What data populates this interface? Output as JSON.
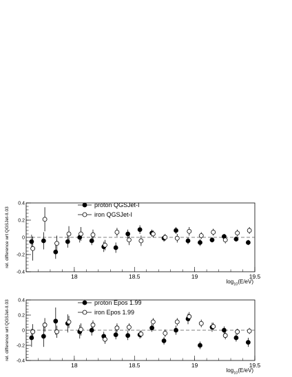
{
  "chart_data": [
    {
      "type": "scatter",
      "ylabel": "rel. difference wrt QGSJet-II.03",
      "xlabel_main": "log",
      "xlabel_sub": "10",
      "xlabel_rest": "(E/eV)",
      "xlim": [
        17.6,
        19.5
      ],
      "ylim": [
        -0.4,
        0.4
      ],
      "xticks": [
        {
          "value": 18,
          "label": "18"
        },
        {
          "value": 18.5,
          "label": "18.5"
        },
        {
          "value": 19,
          "label": "19"
        },
        {
          "value": 19.5,
          "label": "19.5"
        }
      ],
      "yticks": [
        {
          "value": -0.4,
          "label": "-0.4"
        },
        {
          "value": -0.2,
          "label": "-0.2"
        },
        {
          "value": 0,
          "label": "0"
        },
        {
          "value": 0.2,
          "label": "0.2"
        },
        {
          "value": 0.4,
          "label": "0.4"
        }
      ],
      "reference_line": 0,
      "legend_position": "top-center",
      "series": [
        {
          "name": "proton QGSJet-I",
          "marker": "filled-circle",
          "x": [
            17.65,
            17.75,
            17.85,
            17.95,
            18.05,
            18.15,
            18.25,
            18.35,
            18.45,
            18.55,
            18.65,
            18.75,
            18.85,
            18.95,
            19.05,
            19.15,
            19.25,
            19.35,
            19.45
          ],
          "y": [
            -0.05,
            -0.04,
            -0.17,
            -0.05,
            0.0,
            -0.04,
            -0.11,
            -0.12,
            0.04,
            0.09,
            0.05,
            -0.01,
            0.08,
            -0.04,
            -0.06,
            -0.03,
            0.01,
            -0.02,
            -0.06
          ],
          "err": [
            0.08,
            0.1,
            0.08,
            0.07,
            0.06,
            0.05,
            0.06,
            0.06,
            0.05,
            0.05,
            0.04,
            0.04,
            0.04,
            0.04,
            0.04,
            0.03,
            0.03,
            0.03,
            0.03
          ]
        },
        {
          "name": "iron QGSJet-I",
          "marker": "open-circle",
          "x": [
            17.65,
            17.75,
            17.85,
            17.95,
            18.05,
            18.15,
            18.25,
            18.35,
            18.45,
            18.55,
            18.65,
            18.75,
            18.85,
            18.95,
            19.05,
            19.15,
            19.25,
            19.35,
            19.45
          ],
          "y": [
            -0.13,
            0.21,
            -0.07,
            0.04,
            0.04,
            0.03,
            -0.09,
            0.06,
            -0.03,
            -0.04,
            0.04,
            0.0,
            -0.01,
            0.07,
            0.02,
            0.06,
            -0.03,
            0.05,
            0.08
          ],
          "err": [
            0.14,
            0.14,
            0.09,
            0.09,
            0.08,
            0.06,
            0.06,
            0.05,
            0.06,
            0.06,
            0.04,
            0.04,
            0.05,
            0.05,
            0.04,
            0.04,
            0.04,
            0.04,
            0.04
          ]
        }
      ]
    },
    {
      "type": "scatter",
      "ylabel": "rel. difference wrt QGSJet-II.03",
      "xlabel_main": "log",
      "xlabel_sub": "10",
      "xlabel_rest": "(E/eV)",
      "xlim": [
        17.6,
        19.5
      ],
      "ylim": [
        -0.4,
        0.4
      ],
      "xticks": [
        {
          "value": 18,
          "label": "18"
        },
        {
          "value": 18.5,
          "label": "18.5"
        },
        {
          "value": 19,
          "label": "19"
        },
        {
          "value": 19.5,
          "label": "19.5"
        }
      ],
      "yticks": [
        {
          "value": -0.4,
          "label": "-0.4"
        },
        {
          "value": -0.2,
          "label": "-0.2"
        },
        {
          "value": 0,
          "label": "0"
        },
        {
          "value": 0.2,
          "label": "0.2"
        },
        {
          "value": 0.4,
          "label": "0.4"
        }
      ],
      "reference_line": 0,
      "legend_position": "top-center",
      "series": [
        {
          "name": "proton Epos 1.99",
          "marker": "filled-circle",
          "x": [
            17.65,
            17.75,
            17.85,
            17.95,
            18.05,
            18.15,
            18.25,
            18.35,
            18.45,
            18.55,
            18.65,
            18.75,
            18.85,
            18.95,
            19.05,
            19.15,
            19.25,
            19.35,
            19.45
          ],
          "y": [
            -0.1,
            -0.08,
            0.12,
            0.09,
            -0.02,
            0.0,
            -0.08,
            -0.06,
            -0.07,
            -0.06,
            0.03,
            -0.14,
            0.0,
            0.15,
            -0.2,
            0.04,
            0.0,
            -0.1,
            -0.16
          ],
          "err": [
            0.12,
            0.14,
            0.18,
            0.12,
            0.09,
            0.07,
            0.06,
            0.06,
            0.06,
            0.05,
            0.05,
            0.05,
            0.06,
            0.07,
            0.05,
            0.06,
            0.05,
            0.05,
            0.06
          ]
        },
        {
          "name": "iron Epos 1.99",
          "marker": "open-circle",
          "x": [
            17.65,
            17.75,
            17.85,
            17.95,
            18.05,
            18.15,
            18.25,
            18.35,
            18.45,
            18.55,
            18.65,
            18.75,
            18.85,
            18.95,
            19.05,
            19.15,
            19.25,
            19.35,
            19.45
          ],
          "y": [
            -0.02,
            0.07,
            -0.02,
            0.11,
            0.01,
            0.07,
            -0.12,
            0.03,
            0.04,
            -0.05,
            0.11,
            -0.04,
            0.11,
            0.18,
            0.09,
            0.05,
            -0.07,
            -0.02,
            -0.01
          ],
          "err": [
            0.1,
            0.09,
            0.08,
            0.08,
            0.08,
            0.06,
            0.06,
            0.06,
            0.05,
            0.05,
            0.05,
            0.05,
            0.05,
            0.06,
            0.05,
            0.05,
            0.05,
            0.04,
            0.04
          ]
        }
      ]
    }
  ]
}
